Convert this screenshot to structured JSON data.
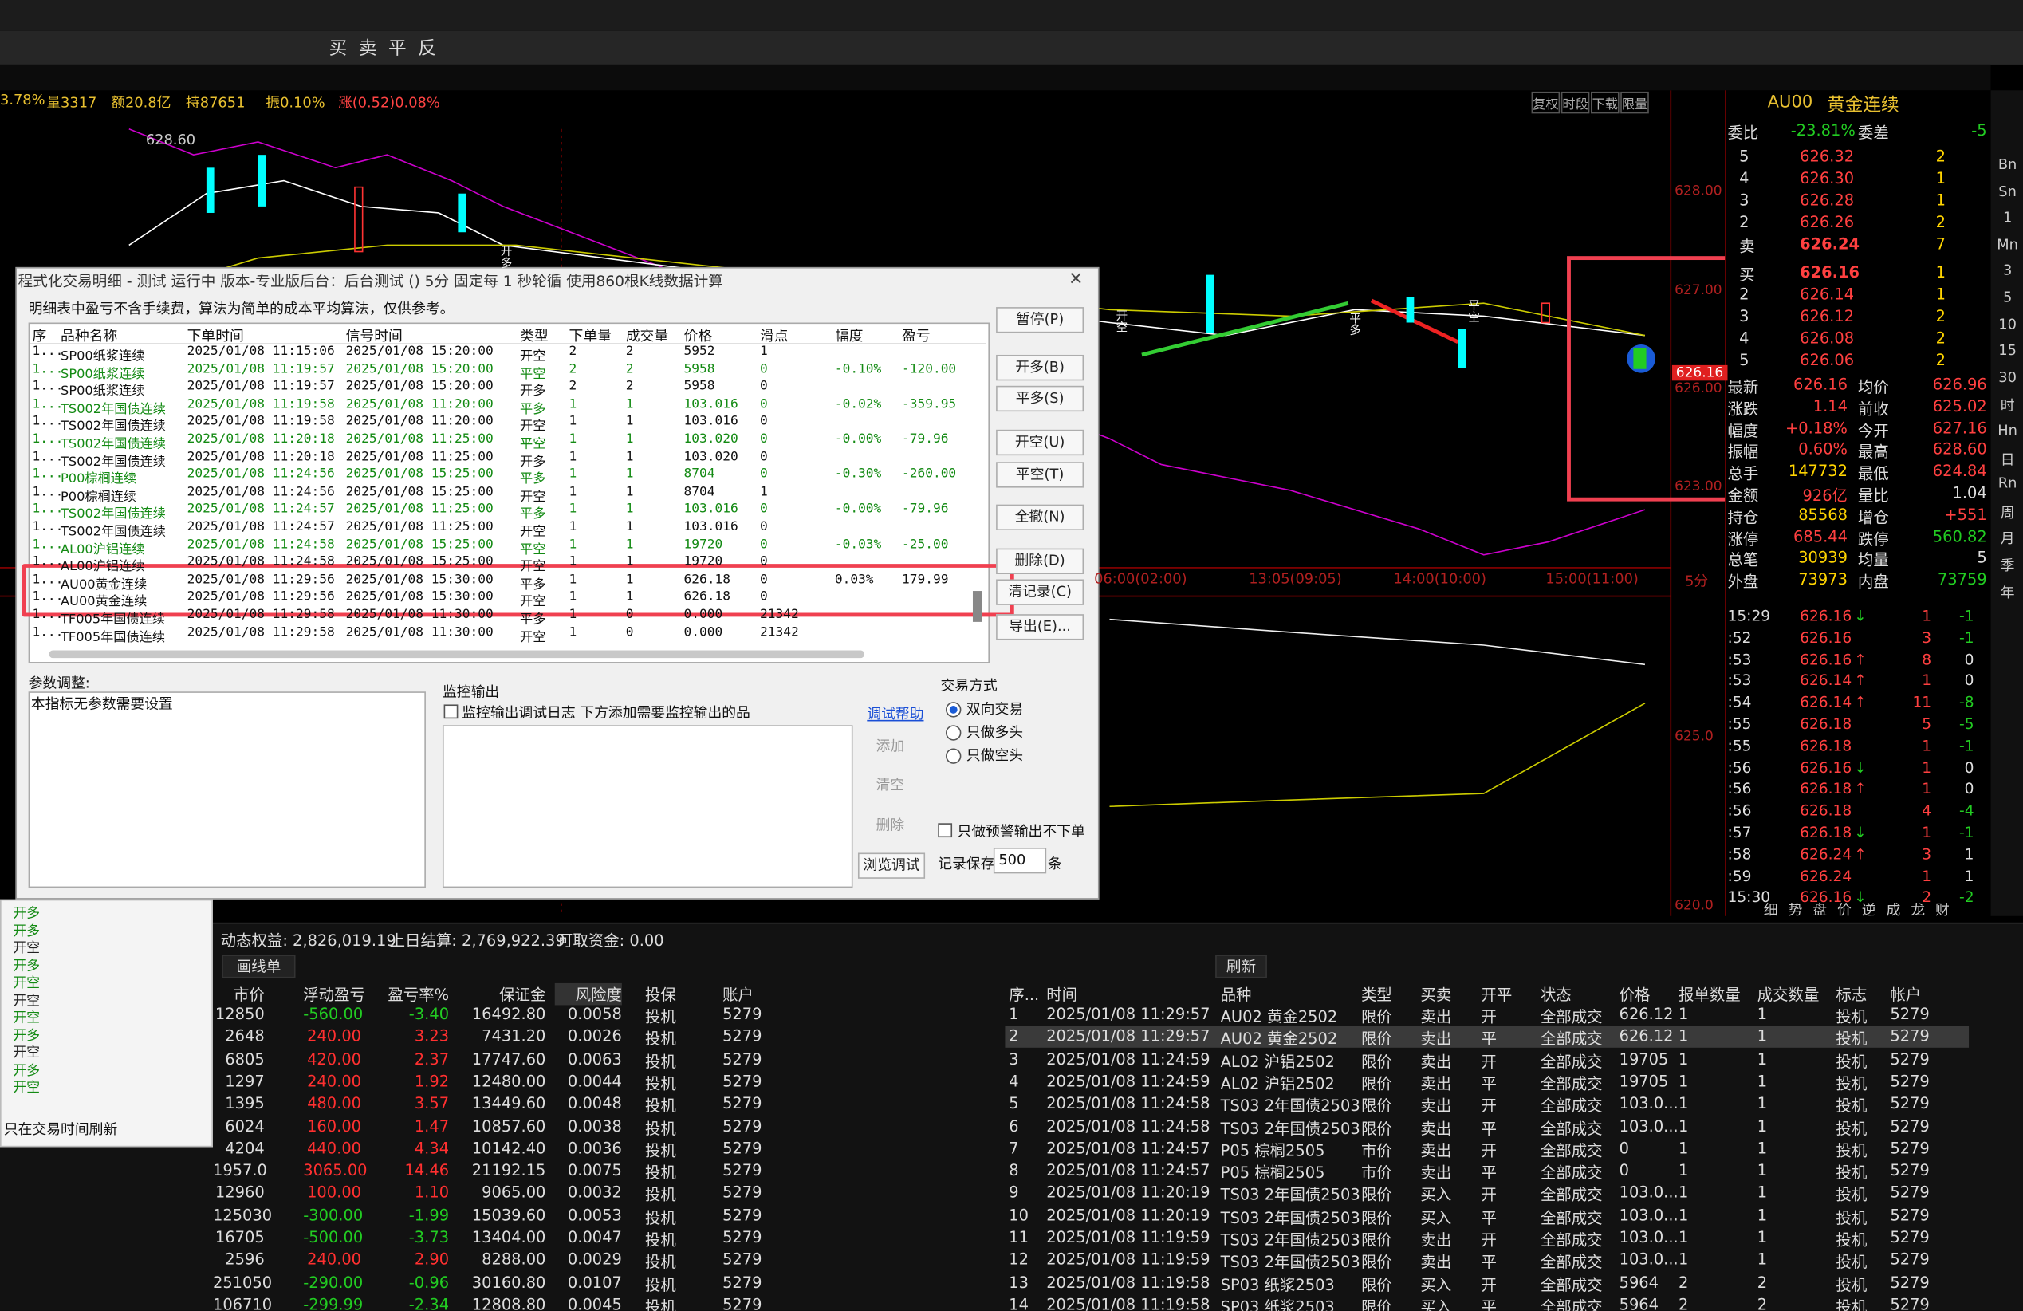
{
  "toolbar": [
    "买",
    "卖",
    "平",
    "反"
  ],
  "quote_bar": [
    "3.78%",
    "量3317",
    "额20.8亿",
    "持87651",
    "振0.10%",
    "涨(0.52)0.08%"
  ],
  "chart_tabs": [
    "复权",
    "时段",
    "下载",
    "限量"
  ],
  "chart_labels": {
    "high": "628.60",
    "price_tag": "626.16",
    "yaxis": [
      "628.00",
      "627.00",
      "626.00",
      "623.00",
      "625.0",
      "620.0"
    ],
    "times": [
      "06:00(02:00)",
      "13:05(09:05)",
      "14:00(10:00)",
      "15:00(11:00)",
      "5分"
    ],
    "markers": [
      "开多",
      "平多",
      "开空",
      "平空"
    ]
  },
  "symbol": {
    "code": "AU00",
    "name": "黄金连续"
  },
  "weibi": [
    "委比",
    "-23.81%",
    "委差",
    "-5"
  ],
  "asks": [
    [
      "5",
      "626.32",
      "2"
    ],
    [
      "4",
      "626.30",
      "1"
    ],
    [
      "3",
      "626.28",
      "1"
    ],
    [
      "2",
      "626.26",
      "2"
    ],
    [
      "卖",
      "626.24",
      "7"
    ]
  ],
  "bids": [
    [
      "买",
      "626.16",
      "1"
    ],
    [
      "2",
      "626.14",
      "1"
    ],
    [
      "3",
      "626.12",
      "2"
    ],
    [
      "4",
      "626.08",
      "2"
    ],
    [
      "5",
      "626.06",
      "2"
    ]
  ],
  "stats": [
    [
      "最新",
      "626.16",
      "均价",
      "626.96"
    ],
    [
      "涨跌",
      "1.14",
      "前收",
      "625.02"
    ],
    [
      "幅度",
      "+0.18%",
      "今开",
      "627.16"
    ],
    [
      "振幅",
      "0.60%",
      "最高",
      "628.60"
    ],
    [
      "总手",
      "147732",
      "最低",
      "624.84"
    ],
    [
      "金额",
      "926亿",
      "量比",
      "1.04"
    ],
    [
      "持仓",
      "85568",
      "增仓",
      "+551"
    ],
    [
      "涨停",
      "685.44",
      "跌停",
      "560.82"
    ],
    [
      "总笔",
      "30939",
      "均量",
      "5"
    ],
    [
      "外盘",
      "73973",
      "内盘",
      "73759"
    ]
  ],
  "ticks": [
    [
      "15:29",
      "626.16",
      "↓",
      "1",
      "-1"
    ],
    [
      ":52",
      "626.16",
      "",
      "3",
      "-1"
    ],
    [
      ":53",
      "626.16",
      "↑",
      "8",
      "0"
    ],
    [
      ":53",
      "626.14",
      "↑",
      "1",
      "0"
    ],
    [
      ":54",
      "626.14",
      "↑",
      "11",
      "-8"
    ],
    [
      ":55",
      "626.18",
      "",
      "5",
      "-5"
    ],
    [
      ":55",
      "626.18",
      "",
      "1",
      "-1"
    ],
    [
      ":56",
      "626.16",
      "↓",
      "1",
      "0"
    ],
    [
      ":56",
      "626.18",
      "↑",
      "1",
      "0"
    ],
    [
      ":56",
      "626.18",
      "",
      "4",
      "-4"
    ],
    [
      ":57",
      "626.18",
      "↓",
      "1",
      "-1"
    ],
    [
      ":58",
      "626.24",
      "↑",
      "3",
      "1"
    ],
    [
      ":59",
      "626.24",
      "",
      "1",
      "1"
    ],
    [
      "15:30",
      "626.16",
      "↓",
      "2",
      "-2"
    ]
  ],
  "side_icons": [
    "Bn",
    "Sn",
    "1",
    "Mn",
    "3",
    "5",
    "10",
    "15",
    "30",
    "时",
    "Hn",
    "日",
    "Rn",
    "周",
    "月",
    "季",
    "年"
  ],
  "bottom_tabs": [
    "细",
    "势",
    "盘",
    "价",
    "逆",
    "成",
    "龙",
    "财"
  ],
  "dialog": {
    "title": "程式化交易明细 - 测试 运行中 版本-专业版后台：后台测试 () 5分 固定每 1 秒轮循 使用860根K线数据计算",
    "note": "明细表中盈亏不含手续费，算法为简单的成本平均算法，仅供参考。",
    "columns": [
      "序",
      "品种名称",
      "下单时间",
      "信号时间",
      "类型",
      "下单量",
      "成交量",
      "价格",
      "滑点",
      "幅度",
      "盈亏"
    ],
    "rows": [
      {
        "no": "1...",
        "name": "SP00纸浆连续",
        "t1": "2025/01/08 11:15:06",
        "t2": "2025/01/08 15:20:00",
        "type": "开空",
        "q": "2",
        "f": "2",
        "price": "5952",
        "slip": "1"
      },
      {
        "no": "1...",
        "name": "SP00纸浆连续",
        "t1": "2025/01/08 11:19:57",
        "t2": "2025/01/08 15:20:00",
        "type": "平空",
        "q": "2",
        "f": "2",
        "price": "5958",
        "slip": "0",
        "range": "-0.10%",
        "pnl": "-120.00",
        "color": "#138a13"
      },
      {
        "no": "1...",
        "name": "SP00纸浆连续",
        "t1": "2025/01/08 11:19:57",
        "t2": "2025/01/08 15:20:00",
        "type": "开多",
        "q": "2",
        "f": "2",
        "price": "5958",
        "slip": "0"
      },
      {
        "no": "1...",
        "name": "TS002年国债连续",
        "t1": "2025/01/08 11:19:58",
        "t2": "2025/01/08 11:20:00",
        "type": "平多",
        "q": "1",
        "f": "1",
        "price": "103.016",
        "slip": "0",
        "range": "-0.02%",
        "pnl": "-359.95",
        "color": "#138a13"
      },
      {
        "no": "1...",
        "name": "TS002年国债连续",
        "t1": "2025/01/08 11:19:58",
        "t2": "2025/01/08 11:20:00",
        "type": "开空",
        "q": "1",
        "f": "1",
        "price": "103.016",
        "slip": "0"
      },
      {
        "no": "1...",
        "name": "TS002年国债连续",
        "t1": "2025/01/08 11:20:18",
        "t2": "2025/01/08 11:25:00",
        "type": "平空",
        "q": "1",
        "f": "1",
        "price": "103.020",
        "slip": "0",
        "range": "-0.00%",
        "pnl": "-79.96",
        "color": "#138a13"
      },
      {
        "no": "1...",
        "name": "TS002年国债连续",
        "t1": "2025/01/08 11:20:18",
        "t2": "2025/01/08 11:25:00",
        "type": "开多",
        "q": "1",
        "f": "1",
        "price": "103.020",
        "slip": "0"
      },
      {
        "no": "1...",
        "name": "P00棕榈连续",
        "t1": "2025/01/08 11:24:56",
        "t2": "2025/01/08 15:25:00",
        "type": "平多",
        "q": "1",
        "f": "1",
        "price": "8704",
        "slip": "0",
        "range": "-0.30%",
        "pnl": "-260.00",
        "color": "#138a13"
      },
      {
        "no": "1...",
        "name": "P00棕榈连续",
        "t1": "2025/01/08 11:24:56",
        "t2": "2025/01/08 15:25:00",
        "type": "开空",
        "q": "1",
        "f": "1",
        "price": "8704",
        "slip": "1"
      },
      {
        "no": "1...",
        "name": "TS002年国债连续",
        "t1": "2025/01/08 11:24:57",
        "t2": "2025/01/08 11:25:00",
        "type": "平多",
        "q": "1",
        "f": "1",
        "price": "103.016",
        "slip": "0",
        "range": "-0.00%",
        "pnl": "-79.96",
        "color": "#138a13"
      },
      {
        "no": "1...",
        "name": "TS002年国债连续",
        "t1": "2025/01/08 11:24:57",
        "t2": "2025/01/08 11:25:00",
        "type": "开空",
        "q": "1",
        "f": "1",
        "price": "103.016",
        "slip": "0"
      },
      {
        "no": "1...",
        "name": "AL00沪铝连续",
        "t1": "2025/01/08 11:24:58",
        "t2": "2025/01/08 15:25:00",
        "type": "平空",
        "q": "1",
        "f": "1",
        "price": "19720",
        "slip": "0",
        "range": "-0.03%",
        "pnl": "-25.00",
        "color": "#138a13"
      },
      {
        "no": "1...",
        "name": "AL00沪铝连续",
        "t1": "2025/01/08 11:24:58",
        "t2": "2025/01/08 15:25:00",
        "type": "开空",
        "q": "1",
        "f": "1",
        "price": "19720",
        "slip": "0"
      },
      {
        "no": "1...",
        "name": "AU00黄金连续",
        "t1": "2025/01/08 11:29:56",
        "t2": "2025/01/08 15:30:00",
        "type": "平多",
        "q": "1",
        "f": "1",
        "price": "626.18",
        "slip": "0",
        "range": "0.03%",
        "pnl": "179.99"
      },
      {
        "no": "1...",
        "name": "AU00黄金连续",
        "t1": "2025/01/08 11:29:56",
        "t2": "2025/01/08 15:30:00",
        "type": "开空",
        "q": "1",
        "f": "1",
        "price": "626.18",
        "slip": "0"
      },
      {
        "no": "1...",
        "name": "TF005年国债连续",
        "t1": "2025/01/08 11:29:58",
        "t2": "2025/01/08 11:30:00",
        "type": "平多",
        "q": "1",
        "f": "0",
        "price": "0.000",
        "slip": "21342"
      },
      {
        "no": "1...",
        "name": "TF005年国债连续",
        "t1": "2025/01/08 11:29:58",
        "t2": "2025/01/08 11:30:00",
        "type": "开空",
        "q": "1",
        "f": "0",
        "price": "0.000",
        "slip": "21342"
      }
    ],
    "buttons": [
      "暂停(P)",
      "开多(B)",
      "平多(S)",
      "开空(U)",
      "平空(T)",
      "全撤(N)",
      "删除(D)",
      "清记录(C)",
      "导出(E)..."
    ],
    "params_label": "参数调整:",
    "params_text": "本指标无参数需要设置",
    "monitor_label": "监控输出",
    "monitor_check": "监控输出调试日志 下方添加需要监控输出的品",
    "debug_help": "调试帮助",
    "monitor_buttons": [
      "添加",
      "清空",
      "删除",
      "浏览调试"
    ],
    "trade_mode_label": "交易方式",
    "trade_modes": [
      "双向交易",
      "只做多头",
      "只做空头"
    ],
    "alert_only": "只做预警输出不下单",
    "keep_label": "记录保存",
    "keep_value": "500",
    "keep_unit": "条"
  },
  "side_list": {
    "items": [
      "开多",
      "开多",
      "开空",
      "开多",
      "开空",
      "开空",
      "开空",
      "开多",
      "开空",
      "开多",
      "开空"
    ],
    "note": "只在交易时间刷新"
  },
  "account": {
    "items": [
      "动态权益: 2,826,019.19",
      "上日结算: 2,769,922.39",
      "可取资金: 0.00"
    ],
    "draw_btn": "画线单",
    "refresh_btn": "刷新"
  },
  "positions": {
    "columns": [
      "市价",
      "浮动盈亏",
      "盈亏率%",
      "保证金",
      "风险度",
      "投保",
      "账户"
    ],
    "rows": [
      [
        "12850",
        "-560.00",
        "-3.40",
        "16492.80",
        "0.0058",
        "投机",
        "5279"
      ],
      [
        "2648",
        "240.00",
        "3.23",
        "7431.20",
        "0.0026",
        "投机",
        "5279"
      ],
      [
        "6805",
        "420.00",
        "2.37",
        "17747.60",
        "0.0063",
        "投机",
        "5279"
      ],
      [
        "1297",
        "240.00",
        "1.92",
        "12480.00",
        "0.0044",
        "投机",
        "5279"
      ],
      [
        "1395",
        "480.00",
        "3.57",
        "13449.60",
        "0.0048",
        "投机",
        "5279"
      ],
      [
        "6024",
        "160.00",
        "1.47",
        "10857.60",
        "0.0038",
        "投机",
        "5279"
      ],
      [
        "4204",
        "440.00",
        "4.34",
        "10142.40",
        "0.0036",
        "投机",
        "5279"
      ],
      [
        "1957.0",
        "3065.00",
        "14.46",
        "21192.15",
        "0.0075",
        "投机",
        "5279"
      ],
      [
        "12960",
        "100.00",
        "1.10",
        "9065.00",
        "0.0032",
        "投机",
        "5279"
      ],
      [
        "125030",
        "-300.00",
        "-1.99",
        "15039.60",
        "0.0053",
        "投机",
        "5279"
      ],
      [
        "16705",
        "-500.00",
        "-3.73",
        "13404.00",
        "0.0047",
        "投机",
        "5279"
      ],
      [
        "2596",
        "240.00",
        "2.90",
        "8288.00",
        "0.0029",
        "投机",
        "5279"
      ],
      [
        "251050",
        "-290.00",
        "-0.96",
        "30160.80",
        "0.0107",
        "投机",
        "5279"
      ],
      [
        "106710",
        "-299.99",
        "-2.34",
        "12808.80",
        "0.0045",
        "投机",
        "5279"
      ]
    ]
  },
  "orders": {
    "columns": [
      "序...",
      "时间",
      "品种",
      "类型",
      "买卖",
      "开平",
      "状态",
      "价格",
      "报单数量",
      "成交数量",
      "标志",
      "帐户"
    ],
    "rows": [
      [
        "1",
        "2025/01/08 11:29:57",
        "AU02 黄金2502",
        "限价",
        "卖出",
        "开",
        "全部成交",
        "626.12",
        "1",
        "1",
        "投机",
        "5279"
      ],
      [
        "2",
        "2025/01/08 11:29:57",
        "AU02 黄金2502",
        "限价",
        "卖出",
        "平",
        "全部成交",
        "626.12",
        "1",
        "1",
        "投机",
        "5279"
      ],
      [
        "3",
        "2025/01/08 11:24:59",
        "AL02 沪铝2502",
        "限价",
        "卖出",
        "开",
        "全部成交",
        "19705",
        "1",
        "1",
        "投机",
        "5279"
      ],
      [
        "4",
        "2025/01/08 11:24:59",
        "AL02 沪铝2502",
        "限价",
        "卖出",
        "平",
        "全部成交",
        "19705",
        "1",
        "1",
        "投机",
        "5279"
      ],
      [
        "5",
        "2025/01/08 11:24:58",
        "TS03 2年国债2503",
        "限价",
        "卖出",
        "开",
        "全部成交",
        "103.0...",
        "1",
        "1",
        "投机",
        "5279"
      ],
      [
        "6",
        "2025/01/08 11:24:58",
        "TS03 2年国债2503",
        "限价",
        "卖出",
        "平",
        "全部成交",
        "103.0...",
        "1",
        "1",
        "投机",
        "5279"
      ],
      [
        "7",
        "2025/01/08 11:24:57",
        "P05 棕榈2505",
        "市价",
        "卖出",
        "开",
        "全部成交",
        "0",
        "1",
        "1",
        "投机",
        "5279"
      ],
      [
        "8",
        "2025/01/08 11:24:57",
        "P05 棕榈2505",
        "市价",
        "卖出",
        "平",
        "全部成交",
        "0",
        "1",
        "1",
        "投机",
        "5279"
      ],
      [
        "9",
        "2025/01/08 11:20:19",
        "TS03 2年国债2503",
        "限价",
        "买入",
        "开",
        "全部成交",
        "103.0...",
        "1",
        "1",
        "投机",
        "5279"
      ],
      [
        "10",
        "2025/01/08 11:20:19",
        "TS03 2年国债2503",
        "限价",
        "买入",
        "平",
        "全部成交",
        "103.0...",
        "1",
        "1",
        "投机",
        "5279"
      ],
      [
        "11",
        "2025/01/08 11:19:59",
        "TS03 2年国债2503",
        "限价",
        "卖出",
        "开",
        "全部成交",
        "103.0...",
        "1",
        "1",
        "投机",
        "5279"
      ],
      [
        "12",
        "2025/01/08 11:19:59",
        "TS03 2年国债2503",
        "限价",
        "卖出",
        "平",
        "全部成交",
        "103.0...",
        "1",
        "1",
        "投机",
        "5279"
      ],
      [
        "13",
        "2025/01/08 11:19:58",
        "SP03 纸浆2503",
        "限价",
        "买入",
        "开",
        "全部成交",
        "5964",
        "2",
        "2",
        "投机",
        "5279"
      ],
      [
        "14",
        "2025/01/08 11:19:58",
        "SP03 纸浆2503",
        "限价",
        "买入",
        "平",
        "全部成交",
        "5964",
        "2",
        "2",
        "投机",
        "5279"
      ]
    ]
  }
}
